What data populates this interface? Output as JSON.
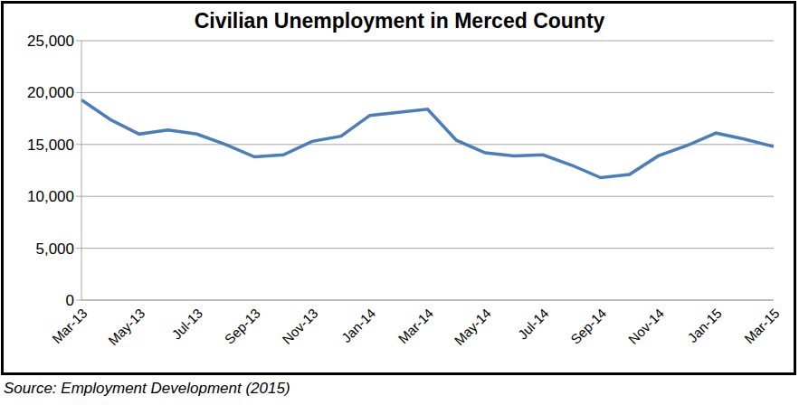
{
  "chart_data": {
    "type": "line",
    "title": "Civilian Unemployment in Merced County",
    "source": "Source: Employment Development (2015)",
    "categories": [
      "Mar-13",
      null,
      "May-13",
      null,
      "Jul-13",
      null,
      "Sep-13",
      null,
      "Nov-13",
      null,
      "Jan-14",
      null,
      "Mar-14",
      null,
      "May-14",
      null,
      "Jul-14",
      null,
      "Sep-14",
      null,
      "Nov-14",
      null,
      "Jan-15",
      null,
      "Mar-15"
    ],
    "values": [
      19300,
      17400,
      16000,
      16400,
      16000,
      15000,
      13800,
      14000,
      15300,
      15800,
      17800,
      18100,
      18400,
      15400,
      14200,
      13900,
      14000,
      13000,
      11800,
      12100,
      13900,
      14900,
      16100,
      15500,
      14800
    ],
    "color": "#4a7ebb",
    "ylim": [
      0,
      25000
    ],
    "yticks": [
      0,
      {
        "value": 5000,
        "label": "5,000"
      },
      {
        "value": 10000,
        "label": "10,000"
      },
      {
        "value": 15000,
        "label": "15,000"
      },
      {
        "value": 20000,
        "label": "20,000"
      },
      {
        "value": 25000,
        "label": "25,000"
      }
    ],
    "grid": true
  }
}
